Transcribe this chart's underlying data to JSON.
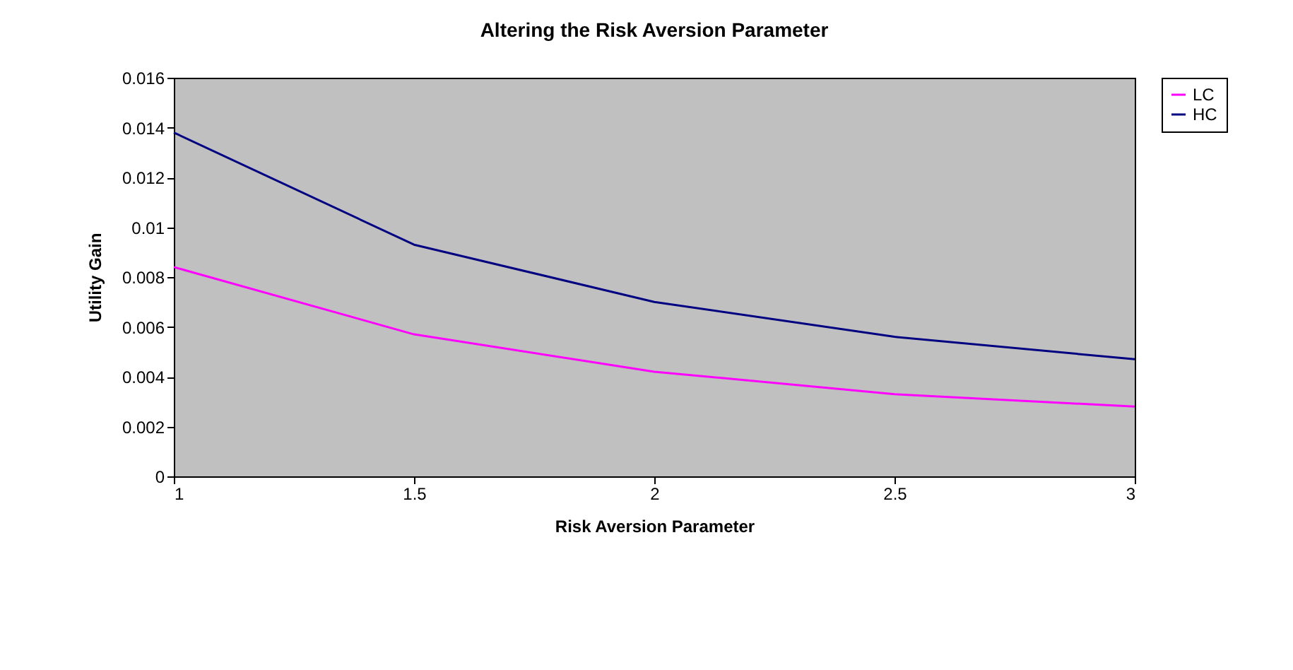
{
  "chart_data": {
    "type": "line",
    "title": "Altering the Risk Aversion Parameter",
    "xlabel": "Risk Aversion Parameter",
    "ylabel": "Utility Gain",
    "x": [
      1,
      1.5,
      2,
      2.5,
      3
    ],
    "series": [
      {
        "name": "LC",
        "color": "#ff00ff",
        "values": [
          0.0084,
          0.0057,
          0.0042,
          0.0033,
          0.0028
        ]
      },
      {
        "name": "HC",
        "color": "#000080",
        "values": [
          0.0138,
          0.0093,
          0.007,
          0.0056,
          0.0047
        ]
      }
    ],
    "xlim": [
      1,
      3
    ],
    "xticks": [
      1,
      1.5,
      2,
      2.5,
      3
    ],
    "ylim": [
      0,
      0.016
    ],
    "yticks": [
      0,
      0.002,
      0.004,
      0.006,
      0.008,
      0.01,
      0.012,
      0.014,
      0.016
    ],
    "grid": false,
    "legend": "right",
    "marker": "none",
    "line_style": "solid"
  }
}
